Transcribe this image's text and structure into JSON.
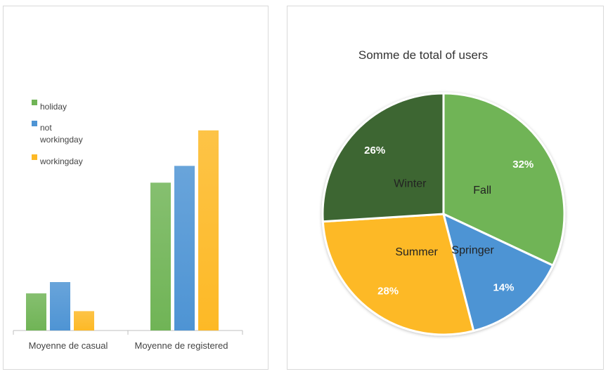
{
  "chart_data": [
    {
      "type": "bar",
      "title": "",
      "categories": [
        "Moyenne de casual",
        "Moyenne de registered"
      ],
      "series": [
        {
          "name": "holiday",
          "color": "#70b456",
          "values": [
            575,
            2290
          ]
        },
        {
          "name": "not workingday",
          "color": "#4e94d4",
          "values": [
            750,
            2550
          ]
        },
        {
          "name": "workingday",
          "color": "#fdb926",
          "values": [
            300,
            3100
          ]
        }
      ],
      "ylim": [
        0,
        3500
      ],
      "legend_position": "top-left",
      "grid": false
    },
    {
      "type": "pie",
      "title": "Somme de total of users",
      "slices": [
        {
          "label": "Fall",
          "percent_label": "32%",
          "value": 32,
          "color": "#70b456"
        },
        {
          "label": "Springer",
          "percent_label": "14%",
          "value": 14,
          "color": "#4e94d4"
        },
        {
          "label": "Summer",
          "percent_label": "28%",
          "value": 28,
          "color": "#fdb926"
        },
        {
          "label": "Winter",
          "percent_label": "26%",
          "value": 26,
          "color": "#3d6632"
        }
      ]
    }
  ]
}
